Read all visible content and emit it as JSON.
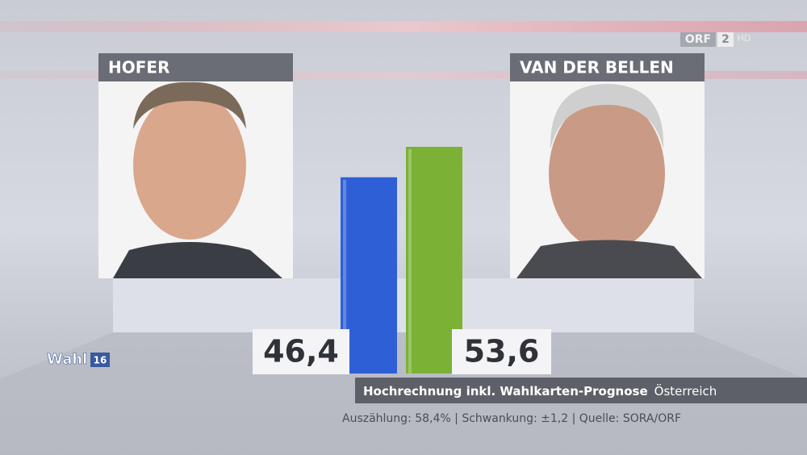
{
  "chart_data": {
    "type": "bar",
    "title": "Hochrechnung inkl. Wahlkarten-Prognose",
    "subtitle": "Österreich",
    "note": "Auszählung: 58,4% | Schwankung: ±1,2 | Quelle: SORA/ORF",
    "categories": [
      "HOFER",
      "VAN DER BELLEN"
    ],
    "values": [
      46.4,
      53.6
    ],
    "value_labels": [
      "46,4",
      "53,6"
    ],
    "colors": [
      "#2f5fd6",
      "#7bb236"
    ],
    "annotations": [
      "ORF",
      "2",
      "HD",
      "Wahl",
      "16"
    ]
  }
}
